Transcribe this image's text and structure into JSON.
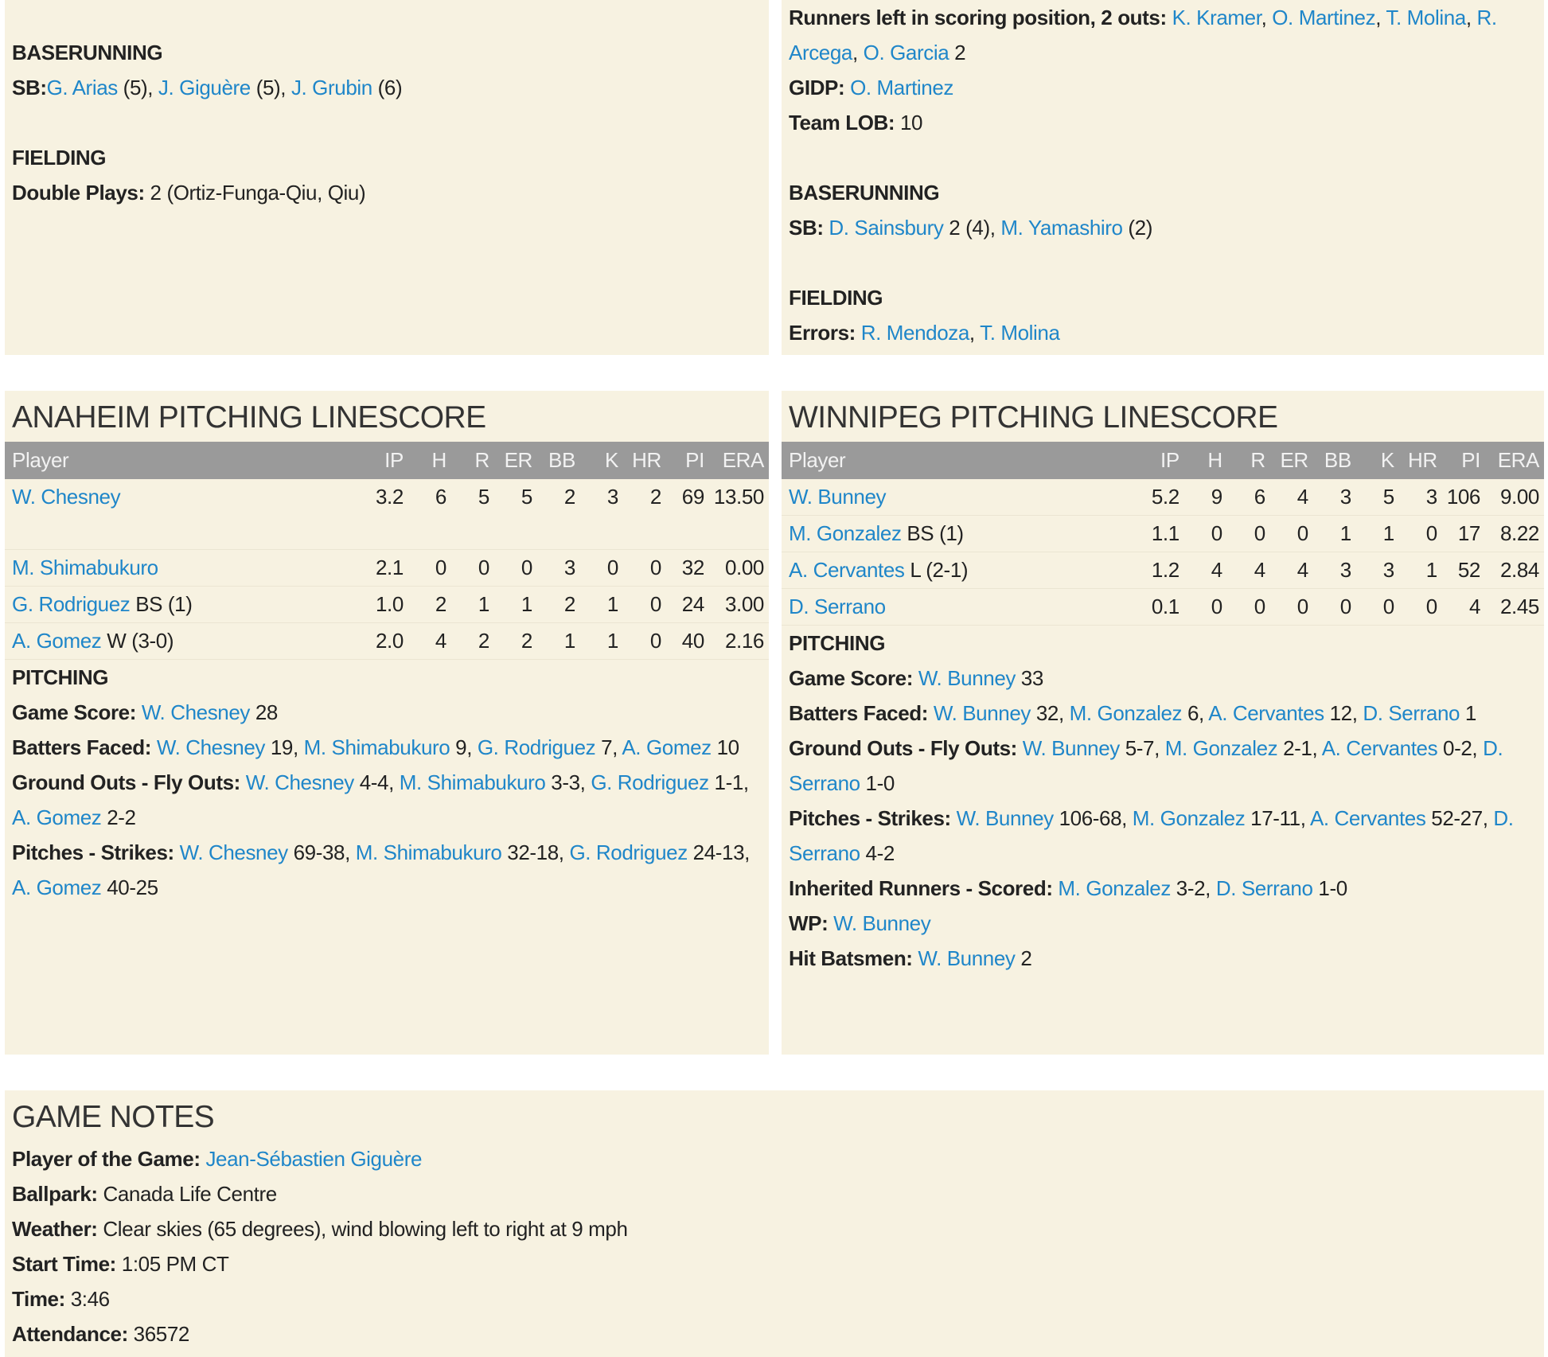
{
  "colors": {
    "panel_bg": "#f7f2e1",
    "header_bg": "#9a9a9a",
    "link": "#1f86c9"
  },
  "top_left": [
    {
      "type": "section",
      "text": "BASERUNNING"
    },
    {
      "type": "line",
      "label": "SB:",
      "parts": [
        {
          "link": "G. Arias"
        },
        {
          "text": " (5), "
        },
        {
          "link": "J. Giguère"
        },
        {
          "text": " (5), "
        },
        {
          "link": "J. Grubin"
        },
        {
          "text": " (6)"
        }
      ]
    },
    {
      "type": "gap"
    },
    {
      "type": "section",
      "text": "FIELDING"
    },
    {
      "type": "line",
      "label": "Double Plays:",
      "parts": [
        {
          "text": " 2 (Ortiz-Funga-Qiu, Qiu)"
        }
      ]
    }
  ],
  "top_right": [
    {
      "type": "line",
      "label": "Runners left in scoring position, 2 outs:",
      "parts": [
        {
          "text": " "
        },
        {
          "link": "K. Kramer"
        },
        {
          "text": ", "
        },
        {
          "link": "O. Martinez"
        },
        {
          "text": ", "
        },
        {
          "link": "T. Molina"
        },
        {
          "text": ", "
        },
        {
          "link": "R. Arcega"
        },
        {
          "text": ", "
        },
        {
          "link": "O. Garcia"
        },
        {
          "text": " 2"
        }
      ]
    },
    {
      "type": "line",
      "label": "GIDP:",
      "parts": [
        {
          "text": " "
        },
        {
          "link": "O. Martinez"
        }
      ]
    },
    {
      "type": "line",
      "label": "Team LOB:",
      "parts": [
        {
          "text": " 10"
        }
      ]
    },
    {
      "type": "gap"
    },
    {
      "type": "section",
      "text": "BASERUNNING"
    },
    {
      "type": "line",
      "label": "SB:",
      "parts": [
        {
          "text": " "
        },
        {
          "link": "D. Sainsbury"
        },
        {
          "text": " 2 (4), "
        },
        {
          "link": "M. Yamashiro"
        },
        {
          "text": " (2)"
        }
      ]
    },
    {
      "type": "gap"
    },
    {
      "type": "section",
      "text": "FIELDING"
    },
    {
      "type": "line",
      "label": "Errors:",
      "parts": [
        {
          "text": " "
        },
        {
          "link": "R. Mendoza"
        },
        {
          "text": ", "
        },
        {
          "link": "T. Molina"
        }
      ]
    }
  ],
  "columns": [
    "Player",
    "IP",
    "H",
    "R",
    "ER",
    "BB",
    "K",
    "HR",
    "PI",
    "ERA"
  ],
  "anaheim": {
    "title": "ANAHEIM PITCHING LINESCORE",
    "rows": [
      {
        "player": "W. Chesney",
        "note": "",
        "stats": [
          "3.2",
          "6",
          "5",
          "5",
          "2",
          "3",
          "2",
          "69",
          "13.50"
        ]
      },
      {
        "player": "M. Shimabukuro",
        "note": "",
        "stats": [
          "2.1",
          "0",
          "0",
          "0",
          "3",
          "0",
          "0",
          "32",
          "0.00"
        ]
      },
      {
        "player": "G. Rodriguez",
        "note": " BS (1)",
        "stats": [
          "1.0",
          "2",
          "1",
          "1",
          "2",
          "1",
          "0",
          "24",
          "3.00"
        ]
      },
      {
        "player": "A. Gomez",
        "note": " W (3-0)",
        "stats": [
          "2.0",
          "4",
          "2",
          "2",
          "1",
          "1",
          "0",
          "40",
          "2.16"
        ]
      }
    ],
    "notes": [
      {
        "type": "section",
        "text": "PITCHING"
      },
      {
        "type": "line",
        "label": "Game Score:",
        "parts": [
          {
            "text": " "
          },
          {
            "link": "W. Chesney"
          },
          {
            "text": " 28"
          }
        ]
      },
      {
        "type": "line",
        "label": "Batters Faced:",
        "parts": [
          {
            "text": " "
          },
          {
            "link": "W. Chesney"
          },
          {
            "text": " 19, "
          },
          {
            "link": "M. Shimabukuro"
          },
          {
            "text": " 9, "
          },
          {
            "link": "G. Rodriguez"
          },
          {
            "text": " 7, "
          },
          {
            "link": "A. Gomez"
          },
          {
            "text": " 10"
          }
        ]
      },
      {
        "type": "line",
        "label": "Ground Outs - Fly Outs:",
        "parts": [
          {
            "text": " "
          },
          {
            "link": "W. Chesney"
          },
          {
            "text": " 4-4, "
          },
          {
            "link": "M. Shimabukuro"
          },
          {
            "text": " 3-3, "
          },
          {
            "link": "G. Rodriguez"
          },
          {
            "text": " 1-1, "
          },
          {
            "link": "A. Gomez"
          },
          {
            "text": " 2-2"
          }
        ]
      },
      {
        "type": "line",
        "label": "Pitches - Strikes:",
        "parts": [
          {
            "text": " "
          },
          {
            "link": "W. Chesney"
          },
          {
            "text": " 69-38, "
          },
          {
            "link": "M. Shimabukuro"
          },
          {
            "text": " 32-18, "
          },
          {
            "link": "G. Rodriguez"
          },
          {
            "text": " 24-13, "
          },
          {
            "link": "A. Gomez"
          },
          {
            "text": " 40-25"
          }
        ]
      }
    ]
  },
  "winnipeg": {
    "title": "WINNIPEG PITCHING LINESCORE",
    "rows": [
      {
        "player": "W. Bunney",
        "note": "",
        "stats": [
          "5.2",
          "9",
          "6",
          "4",
          "3",
          "5",
          "3",
          "106",
          "9.00"
        ]
      },
      {
        "player": "M. Gonzalez",
        "note": " BS (1)",
        "stats": [
          "1.1",
          "0",
          "0",
          "0",
          "1",
          "1",
          "0",
          "17",
          "8.22"
        ]
      },
      {
        "player": "A. Cervantes",
        "note": " L (2-1)",
        "stats": [
          "1.2",
          "4",
          "4",
          "4",
          "3",
          "3",
          "1",
          "52",
          "2.84"
        ]
      },
      {
        "player": "D. Serrano",
        "note": "",
        "stats": [
          "0.1",
          "0",
          "0",
          "0",
          "0",
          "0",
          "0",
          "4",
          "2.45"
        ]
      }
    ],
    "notes": [
      {
        "type": "section",
        "text": "PITCHING"
      },
      {
        "type": "line",
        "label": "Game Score:",
        "parts": [
          {
            "text": " "
          },
          {
            "link": "W. Bunney"
          },
          {
            "text": " 33"
          }
        ]
      },
      {
        "type": "line",
        "label": "Batters Faced:",
        "parts": [
          {
            "text": " "
          },
          {
            "link": "W. Bunney"
          },
          {
            "text": " 32, "
          },
          {
            "link": "M. Gonzalez"
          },
          {
            "text": " 6, "
          },
          {
            "link": "A. Cervantes"
          },
          {
            "text": " 12, "
          },
          {
            "link": "D. Serrano"
          },
          {
            "text": " 1"
          }
        ]
      },
      {
        "type": "line",
        "label": "Ground Outs - Fly Outs:",
        "parts": [
          {
            "text": " "
          },
          {
            "link": "W. Bunney"
          },
          {
            "text": " 5-7, "
          },
          {
            "link": "M. Gonzalez"
          },
          {
            "text": " 2-1, "
          },
          {
            "link": "A. Cervantes"
          },
          {
            "text": " 0-2, "
          },
          {
            "link": "D. Serrano"
          },
          {
            "text": " 1-0"
          }
        ]
      },
      {
        "type": "line",
        "label": "Pitches - Strikes:",
        "parts": [
          {
            "text": " "
          },
          {
            "link": "W. Bunney"
          },
          {
            "text": " 106-68, "
          },
          {
            "link": "M. Gonzalez"
          },
          {
            "text": " 17-11, "
          },
          {
            "link": "A. Cervantes"
          },
          {
            "text": " 52-27, "
          },
          {
            "link": "D. Serrano"
          },
          {
            "text": " 4-2"
          }
        ]
      },
      {
        "type": "line",
        "label": "Inherited Runners - Scored:",
        "parts": [
          {
            "text": " "
          },
          {
            "link": "M. Gonzalez"
          },
          {
            "text": " 3-2, "
          },
          {
            "link": "D. Serrano"
          },
          {
            "text": " 1-0"
          }
        ]
      },
      {
        "type": "line",
        "label": "WP:",
        "parts": [
          {
            "text": " "
          },
          {
            "link": "W. Bunney"
          }
        ]
      },
      {
        "type": "line",
        "label": "Hit Batsmen:",
        "parts": [
          {
            "text": " "
          },
          {
            "link": "W. Bunney"
          },
          {
            "text": " 2"
          }
        ]
      }
    ]
  },
  "game_notes": {
    "title": "GAME NOTES",
    "lines": [
      {
        "type": "line",
        "label": "Player of the Game:",
        "parts": [
          {
            "text": " "
          },
          {
            "link": "Jean-Sébastien Giguère"
          }
        ]
      },
      {
        "type": "line",
        "label": "Ballpark:",
        "parts": [
          {
            "text": " Canada Life Centre"
          }
        ]
      },
      {
        "type": "line",
        "label": "Weather:",
        "parts": [
          {
            "text": " Clear skies (65 degrees), wind blowing left to right at 9 mph"
          }
        ]
      },
      {
        "type": "line",
        "label": "Start Time:",
        "parts": [
          {
            "text": " 1:05 PM CT"
          }
        ]
      },
      {
        "type": "line",
        "label": "Time:",
        "parts": [
          {
            "text": " 3:46"
          }
        ]
      },
      {
        "type": "line",
        "label": "Attendance:",
        "parts": [
          {
            "text": " 36572"
          }
        ]
      }
    ]
  }
}
